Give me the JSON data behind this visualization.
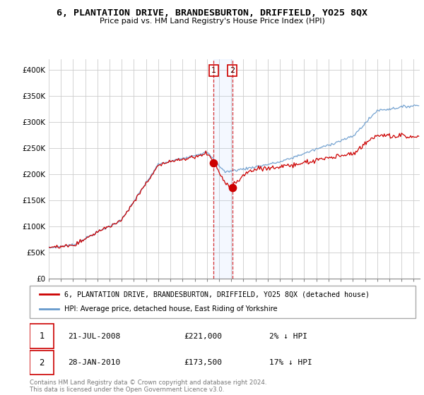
{
  "title": "6, PLANTATION DRIVE, BRANDESBURTON, DRIFFIELD, YO25 8QX",
  "subtitle": "Price paid vs. HM Land Registry's House Price Index (HPI)",
  "legend_label_red": "6, PLANTATION DRIVE, BRANDESBURTON, DRIFFIELD, YO25 8QX (detached house)",
  "legend_label_blue": "HPI: Average price, detached house, East Riding of Yorkshire",
  "transaction1_date": "21-JUL-2008",
  "transaction1_price": "£221,000",
  "transaction1_hpi": "2% ↓ HPI",
  "transaction2_date": "28-JAN-2010",
  "transaction2_price": "£173,500",
  "transaction2_hpi": "17% ↓ HPI",
  "footer": "Contains HM Land Registry data © Crown copyright and database right 2024.\nThis data is licensed under the Open Government Licence v3.0.",
  "ylim": [
    0,
    420000
  ],
  "yticks": [
    0,
    50000,
    100000,
    150000,
    200000,
    250000,
    300000,
    350000,
    400000
  ],
  "ytick_labels": [
    "£0",
    "£50K",
    "£100K",
    "£150K",
    "£200K",
    "£250K",
    "£300K",
    "£350K",
    "£400K"
  ],
  "color_red": "#cc0000",
  "color_blue": "#6699cc",
  "color_vline": "#cc0000",
  "transaction1_x": 2008.55,
  "transaction1_y": 221000,
  "transaction2_x": 2010.08,
  "transaction2_y": 173500,
  "xlim_start": 1995.0,
  "xlim_end": 2025.5,
  "background_color": "#ffffff",
  "grid_color": "#cccccc"
}
